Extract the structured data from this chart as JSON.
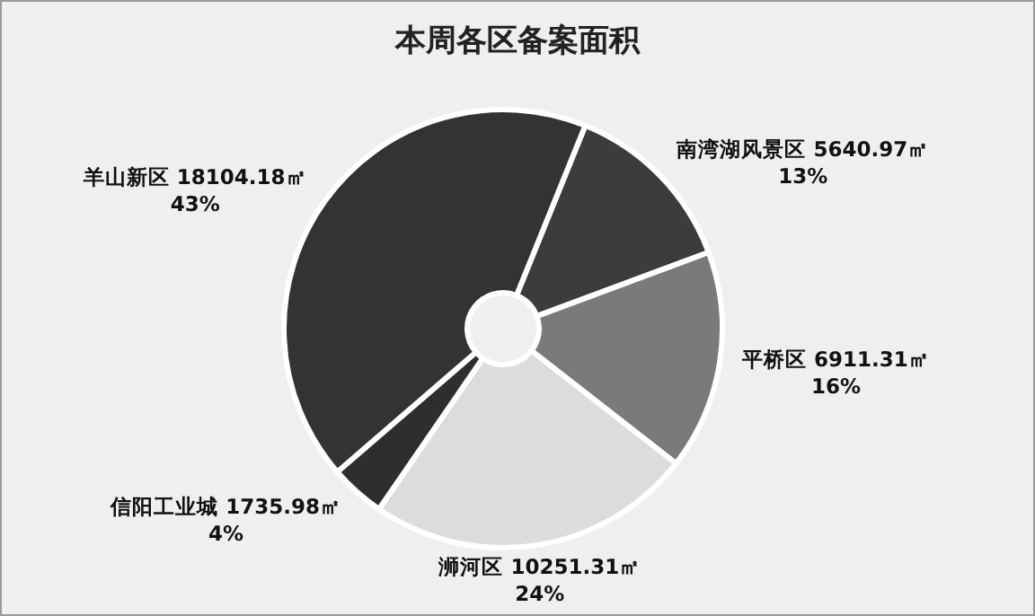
{
  "chart_data": {
    "type": "donut",
    "title": "本周各区备案面积",
    "categories": [
      "南湾湖风景区",
      "平桥区",
      "浉河区",
      "信阳工业城",
      "羊山新区"
    ],
    "values": [
      5640.97,
      6911.31,
      10251.31,
      1735.98,
      18104.18
    ],
    "colors": [
      "#3c3c3c",
      "#7a7a7a",
      "#dcdcdc",
      "#2e2e2e",
      "#333333"
    ],
    "value_labels": [
      "5640.97㎡\n13%",
      "6911.31㎡\n16%",
      "10251.31㎡\n24%",
      "1735.98㎡\n4%",
      "18104.18㎡\n43%"
    ]
  }
}
